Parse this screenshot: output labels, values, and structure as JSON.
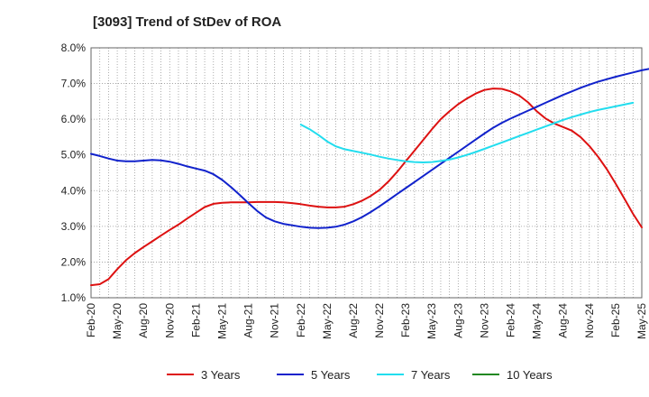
{
  "chart_data": {
    "type": "line",
    "title": "[3093]  Trend of StDev of ROA",
    "xlabel": "",
    "ylabel": "",
    "ylim": [
      1.0,
      8.0
    ],
    "y_ticks": [
      "1.0%",
      "2.0%",
      "3.0%",
      "4.0%",
      "5.0%",
      "6.0%",
      "7.0%",
      "8.0%"
    ],
    "x_ticks": [
      "Feb-20",
      "May-20",
      "Aug-20",
      "Nov-20",
      "Feb-21",
      "May-21",
      "Aug-21",
      "Nov-21",
      "Feb-22",
      "May-22",
      "Aug-22",
      "Nov-22",
      "Feb-23",
      "May-23",
      "Aug-23",
      "Nov-23",
      "Feb-24",
      "May-24",
      "Aug-24",
      "Nov-24",
      "Feb-25",
      "May-25"
    ],
    "grid": true,
    "legend_position": "bottom",
    "x_start": "2020-02",
    "x_step_months": 1,
    "series": [
      {
        "name": "3 Years",
        "color": "#dd1111",
        "start": "2020-02",
        "values": [
          1.35,
          1.38,
          1.52,
          1.8,
          2.05,
          2.25,
          2.42,
          2.58,
          2.74,
          2.9,
          3.05,
          3.22,
          3.38,
          3.54,
          3.63,
          3.66,
          3.67,
          3.67,
          3.67,
          3.68,
          3.68,
          3.68,
          3.67,
          3.65,
          3.62,
          3.58,
          3.55,
          3.53,
          3.53,
          3.55,
          3.62,
          3.72,
          3.85,
          4.02,
          4.25,
          4.52,
          4.82,
          5.12,
          5.42,
          5.72,
          6.0,
          6.22,
          6.42,
          6.58,
          6.72,
          6.82,
          6.86,
          6.85,
          6.78,
          6.66,
          6.47,
          6.22,
          6.02,
          5.88,
          5.78,
          5.68,
          5.5,
          5.25,
          4.95,
          4.6,
          4.2,
          3.78,
          3.35,
          2.97
        ]
      },
      {
        "name": "5 Years",
        "color": "#1122cc",
        "start": "2020-02",
        "values": [
          5.03,
          4.97,
          4.9,
          4.84,
          4.82,
          4.82,
          4.84,
          4.86,
          4.85,
          4.81,
          4.75,
          4.68,
          4.62,
          4.56,
          4.46,
          4.3,
          4.1,
          3.88,
          3.65,
          3.43,
          3.25,
          3.14,
          3.07,
          3.03,
          2.99,
          2.96,
          2.95,
          2.96,
          2.99,
          3.05,
          3.14,
          3.26,
          3.4,
          3.56,
          3.73,
          3.9,
          4.07,
          4.24,
          4.41,
          4.58,
          4.75,
          4.92,
          5.09,
          5.26,
          5.43,
          5.6,
          5.76,
          5.9,
          6.02,
          6.13,
          6.24,
          6.35,
          6.46,
          6.57,
          6.68,
          6.78,
          6.88,
          6.97,
          7.05,
          7.12,
          7.19,
          7.25,
          7.31,
          7.37,
          7.42
        ]
      },
      {
        "name": "7 Years",
        "color": "#22ddee",
        "start": "2022-02",
        "values": [
          5.85,
          5.72,
          5.56,
          5.38,
          5.24,
          5.16,
          5.11,
          5.06,
          5.01,
          4.95,
          4.9,
          4.86,
          4.82,
          4.8,
          4.79,
          4.8,
          4.83,
          4.87,
          4.93,
          5.0,
          5.08,
          5.17,
          5.26,
          5.35,
          5.44,
          5.53,
          5.62,
          5.71,
          5.8,
          5.89,
          5.98,
          6.06,
          6.13,
          6.2,
          6.26,
          6.31,
          6.36,
          6.41,
          6.46
        ]
      },
      {
        "name": "10 Years",
        "color": "#228822",
        "start": "2020-02",
        "values": []
      }
    ]
  }
}
